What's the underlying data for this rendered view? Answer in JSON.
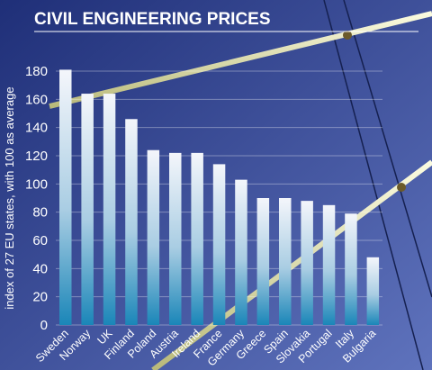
{
  "chart_data": {
    "type": "bar",
    "title": "CIVIL ENGINEERING PRICES",
    "ylabel": "index of 27 EU states, with 100 as average",
    "xlabel": "",
    "ylim": [
      0,
      180
    ],
    "yticks": [
      0,
      20,
      40,
      60,
      80,
      100,
      120,
      140,
      160,
      180
    ],
    "grid": true,
    "categories": [
      "Sweden",
      "Norway",
      "UK",
      "Finland",
      "Poland",
      "Austria",
      "Ireland",
      "France",
      "Germany",
      "Greece",
      "Spain",
      "Slovakia",
      "Portugal",
      "Italy",
      "Bulgaria"
    ],
    "values": [
      181,
      164,
      164,
      146,
      124,
      122,
      122,
      114,
      103,
      90,
      90,
      88,
      85,
      79,
      48
    ]
  },
  "colors": {
    "bg_dark": "#1f2f78",
    "bg_light": "#5f73bd",
    "bar_top": "#f4f6fb",
    "bar_bottom": "#1a86b8",
    "text": "#ffffff",
    "cable": "#e6e8b0",
    "wire": "#152050"
  }
}
